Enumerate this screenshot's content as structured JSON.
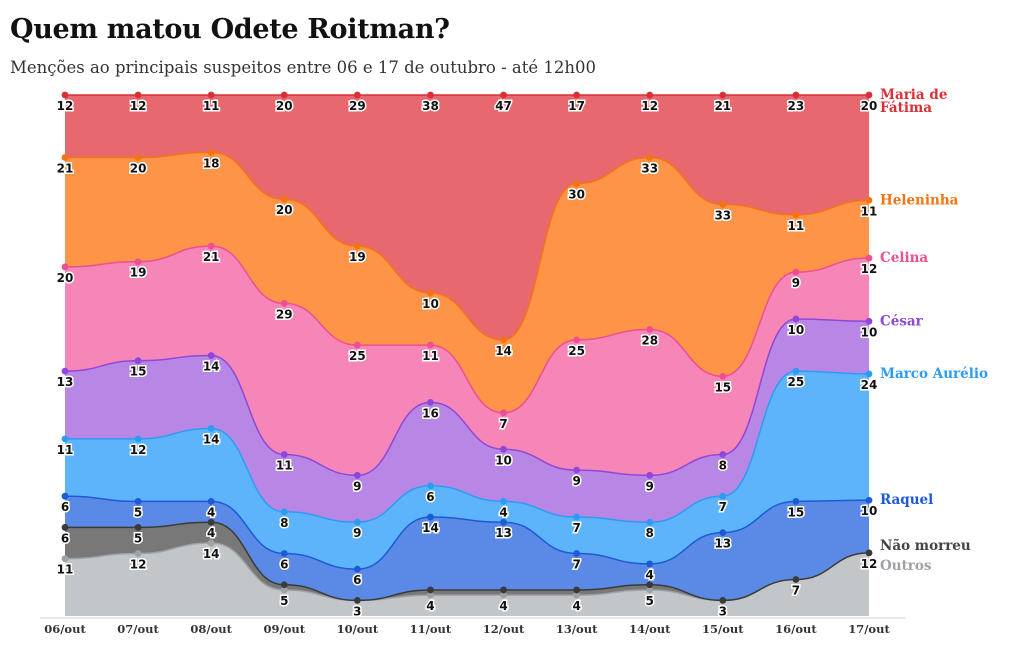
{
  "header": {
    "title": "Quem matou Odete Roitman?",
    "subtitle": "Menções ao principais suspeitos entre 06 e 17 de outubro - até 12h00"
  },
  "chart_data": {
    "type": "area",
    "stacked": true,
    "normalized": true,
    "title": "Quem matou Odete Roitman?",
    "subtitle": "Menções ao principais suspeitos entre 06 e 17 de outubro - até 12h00",
    "xlabel": "",
    "ylabel": "",
    "grid": false,
    "categories": [
      "06/out",
      "07/out",
      "08/out",
      "09/out",
      "10/out",
      "11/out",
      "12/out",
      "13/out",
      "14/out",
      "15/out",
      "16/out",
      "17/out"
    ],
    "series": [
      {
        "name": "Outros",
        "values": [
          11,
          12,
          14,
          5,
          3,
          4,
          4,
          4,
          5,
          3,
          7,
          12
        ],
        "color": "#c3c6c9",
        "line": "#9ea2a6",
        "label_color": "#9ea2a6",
        "legend_lines": [
          "Outros"
        ]
      },
      {
        "name": "Não morreu",
        "values": [
          6,
          5,
          4,
          1,
          0,
          1,
          1,
          1,
          1,
          0,
          0,
          0
        ],
        "value_labels": [
          "6",
          "5",
          "4",
          "",
          "",
          "",
          "",
          "",
          "",
          "",
          "",
          ""
        ],
        "color": "#787878",
        "line": "#3a3a3a",
        "label_color": "#444444",
        "legend_lines": [
          "Não morreu"
        ]
      },
      {
        "name": "Raquel",
        "values": [
          6,
          5,
          4,
          6,
          6,
          14,
          13,
          7,
          4,
          13,
          15,
          10
        ],
        "color": "#5a8ae6",
        "line": "#1d5ad6",
        "label_color": "#1d5ad6",
        "legend_lines": [
          "Raquel"
        ]
      },
      {
        "name": "Marco Aurélio",
        "values": [
          11,
          12,
          14,
          8,
          9,
          6,
          4,
          7,
          8,
          7,
          25,
          24
        ],
        "color": "#5db4fb",
        "line": "#2c9cf2",
        "label_color": "#2c9cf2",
        "legend_lines": [
          "Marco Aurélio"
        ]
      },
      {
        "name": "César",
        "values": [
          13,
          15,
          14,
          11,
          9,
          16,
          10,
          9,
          9,
          8,
          10,
          10
        ],
        "color": "#b887e6",
        "line": "#8f47d9",
        "label_color": "#8f47d9",
        "legend_lines": [
          "César"
        ]
      },
      {
        "name": "Celina",
        "values": [
          20,
          19,
          21,
          29,
          25,
          11,
          7,
          25,
          28,
          15,
          9,
          12
        ],
        "color": "#f786b8",
        "line": "#ec4f93",
        "label_color": "#ec4f93",
        "legend_lines": [
          "Celina"
        ]
      },
      {
        "name": "Heleninha",
        "values": [
          21,
          20,
          18,
          20,
          19,
          10,
          14,
          30,
          33,
          33,
          11,
          11
        ],
        "color": "#fd9448",
        "line": "#f47313",
        "label_color": "#f47313",
        "legend_lines": [
          "Heleninha"
        ]
      },
      {
        "name": "Maria de Fátima",
        "values": [
          12,
          12,
          11,
          20,
          29,
          38,
          47,
          17,
          12,
          21,
          23,
          20
        ],
        "color": "#e8686f",
        "line": "#d93038",
        "label_color": "#d93038",
        "legend_lines": [
          "Maria de",
          "Fátima"
        ]
      }
    ]
  }
}
